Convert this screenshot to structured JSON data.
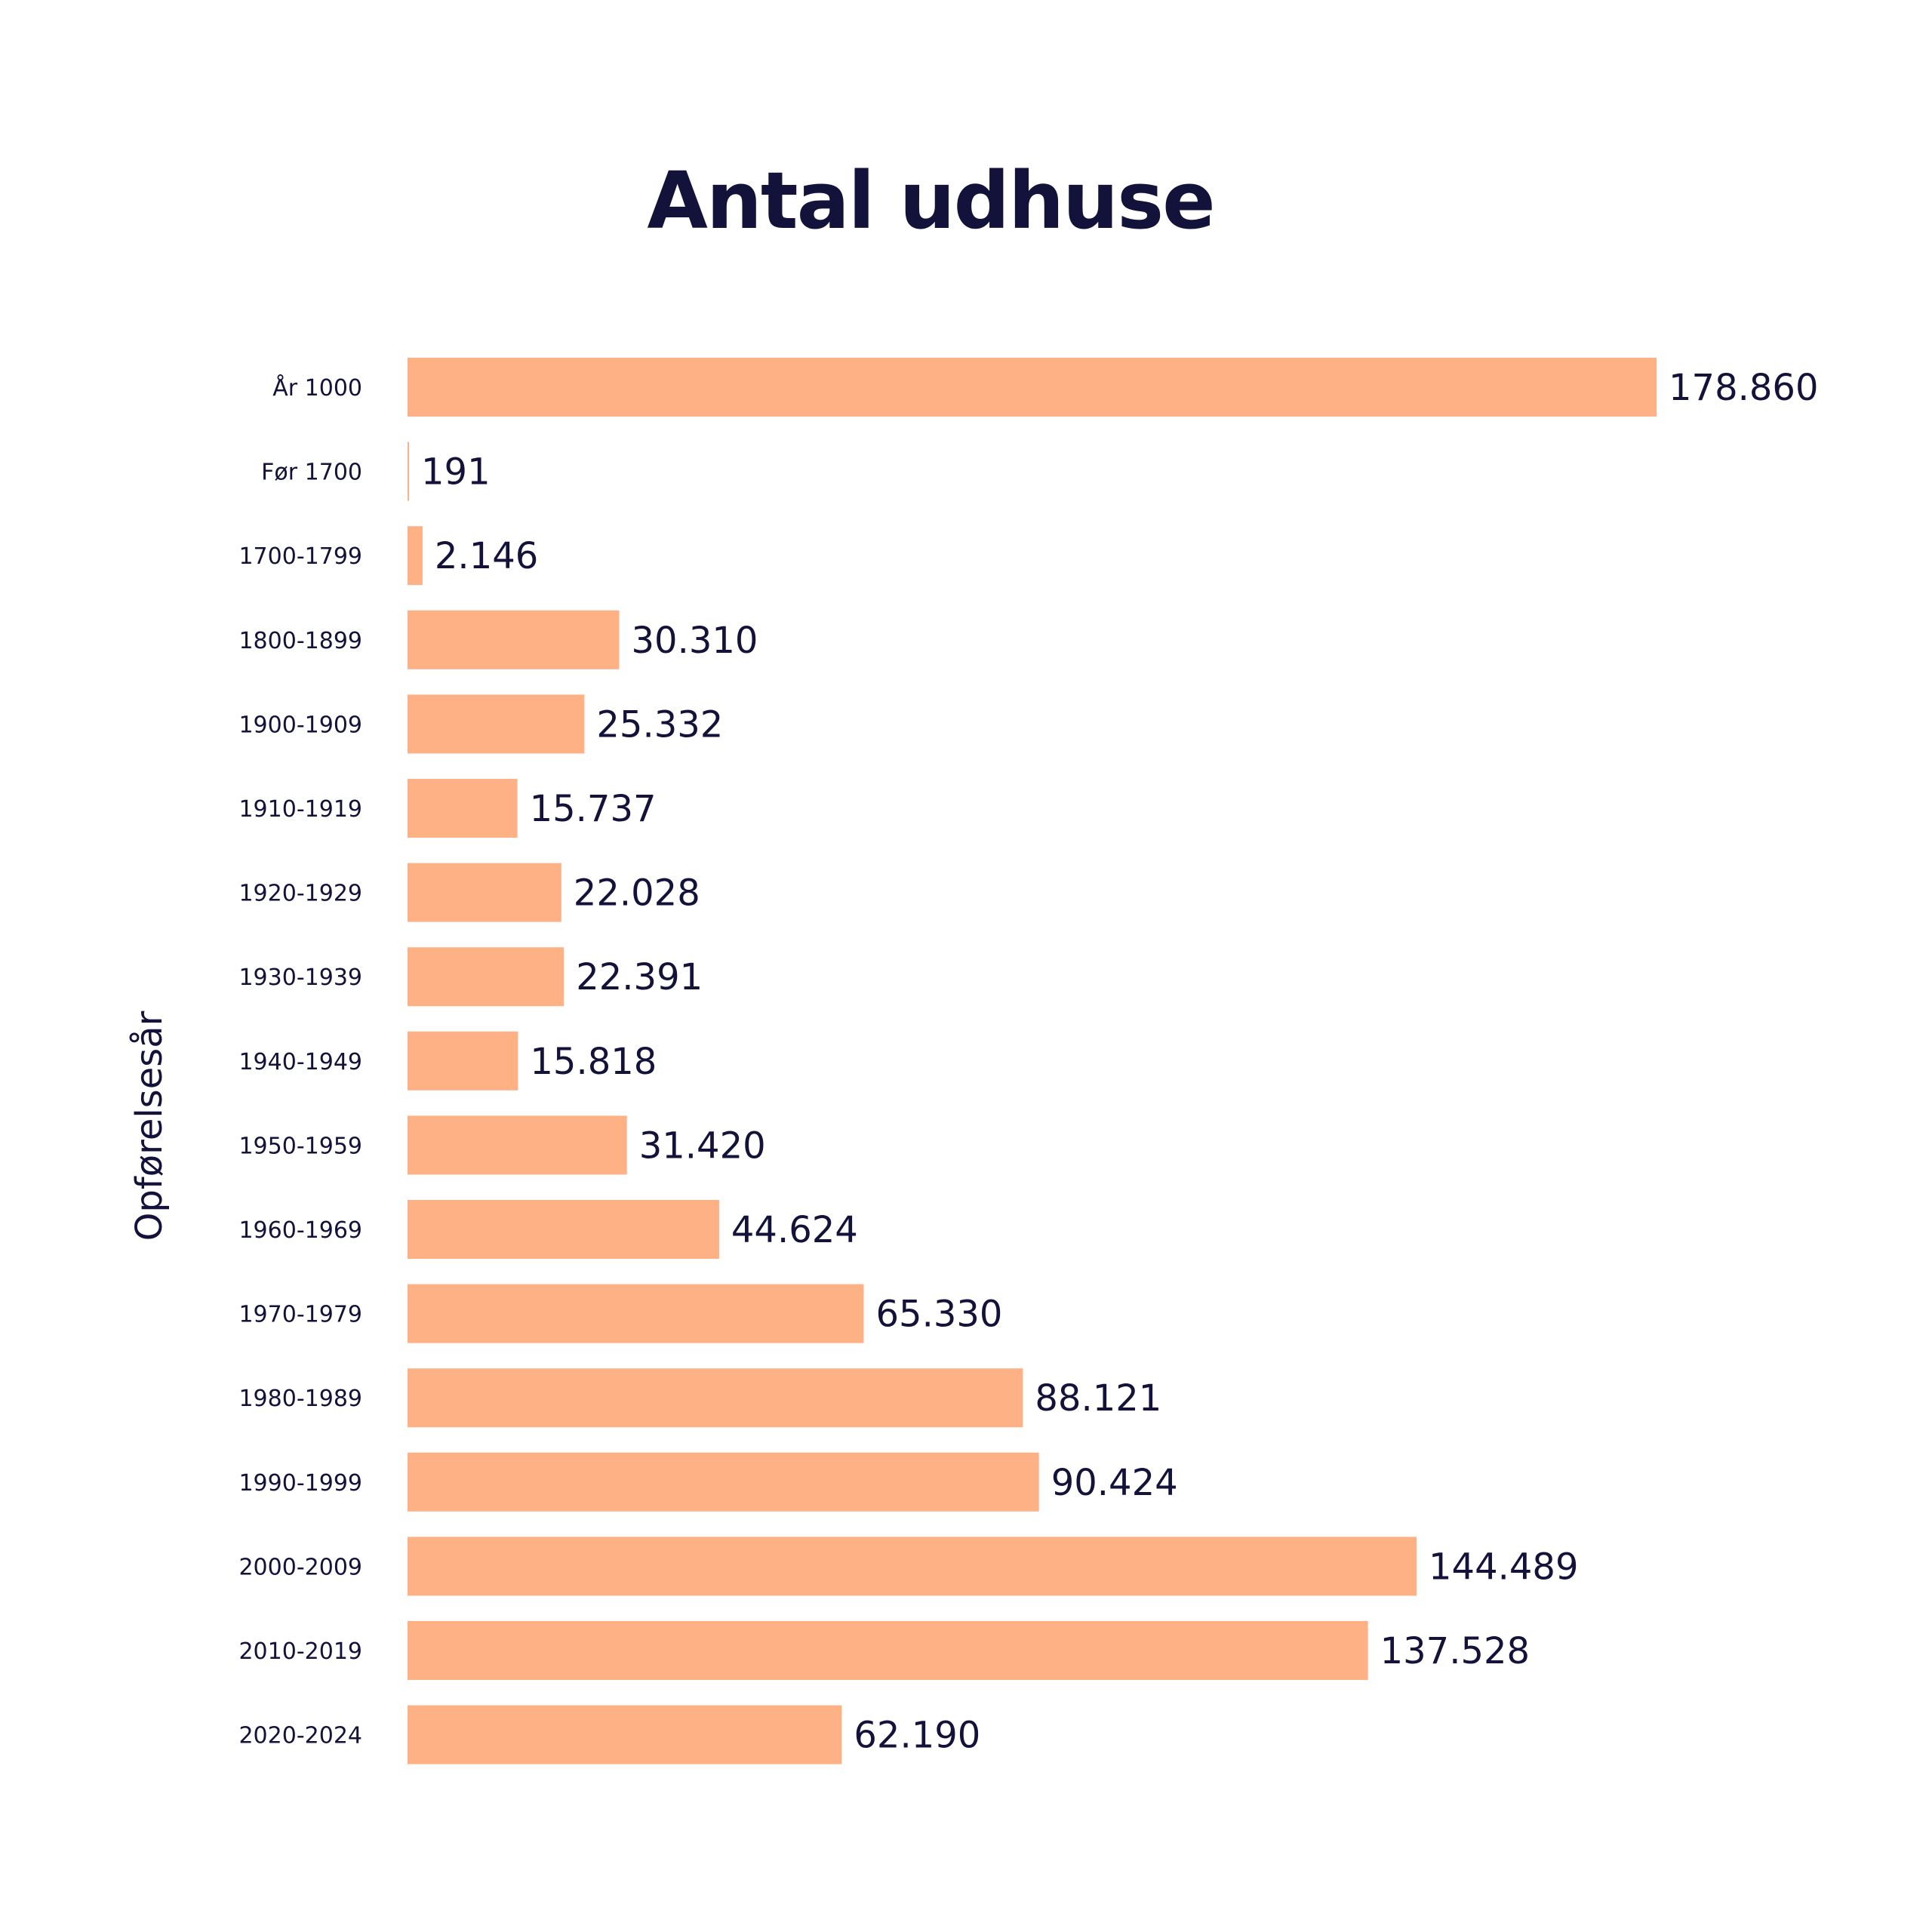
{
  "chart_data": {
    "type": "bar",
    "orientation": "horizontal",
    "title": "Antal udhuse",
    "ylabel": "Opførelsesår",
    "xlabel": "",
    "bar_color": "#fdb185",
    "text_color": "#13123a",
    "grid": false,
    "legend": "none",
    "categories": [
      "År 1000",
      "Før 1700",
      "1700-1799",
      "1800-1899",
      "1900-1909",
      "1910-1919",
      "1920-1929",
      "1930-1939",
      "1940-1949",
      "1950-1959",
      "1960-1969",
      "1970-1979",
      "1980-1989",
      "1990-1999",
      "2000-2009",
      "2010-2019",
      "2020-2024"
    ],
    "values": [
      178860,
      191,
      2146,
      30310,
      25332,
      15737,
      22028,
      22391,
      15818,
      31420,
      44624,
      65330,
      88121,
      90424,
      144489,
      137528,
      62190
    ],
    "value_labels": [
      "178.860",
      "191",
      "2.146",
      "30.310",
      "25.332",
      "15.737",
      "22.028",
      "22.391",
      "15.818",
      "31.420",
      "44.624",
      "65.330",
      "88.121",
      "90.424",
      "144.489",
      "137.528",
      "62.190"
    ]
  }
}
